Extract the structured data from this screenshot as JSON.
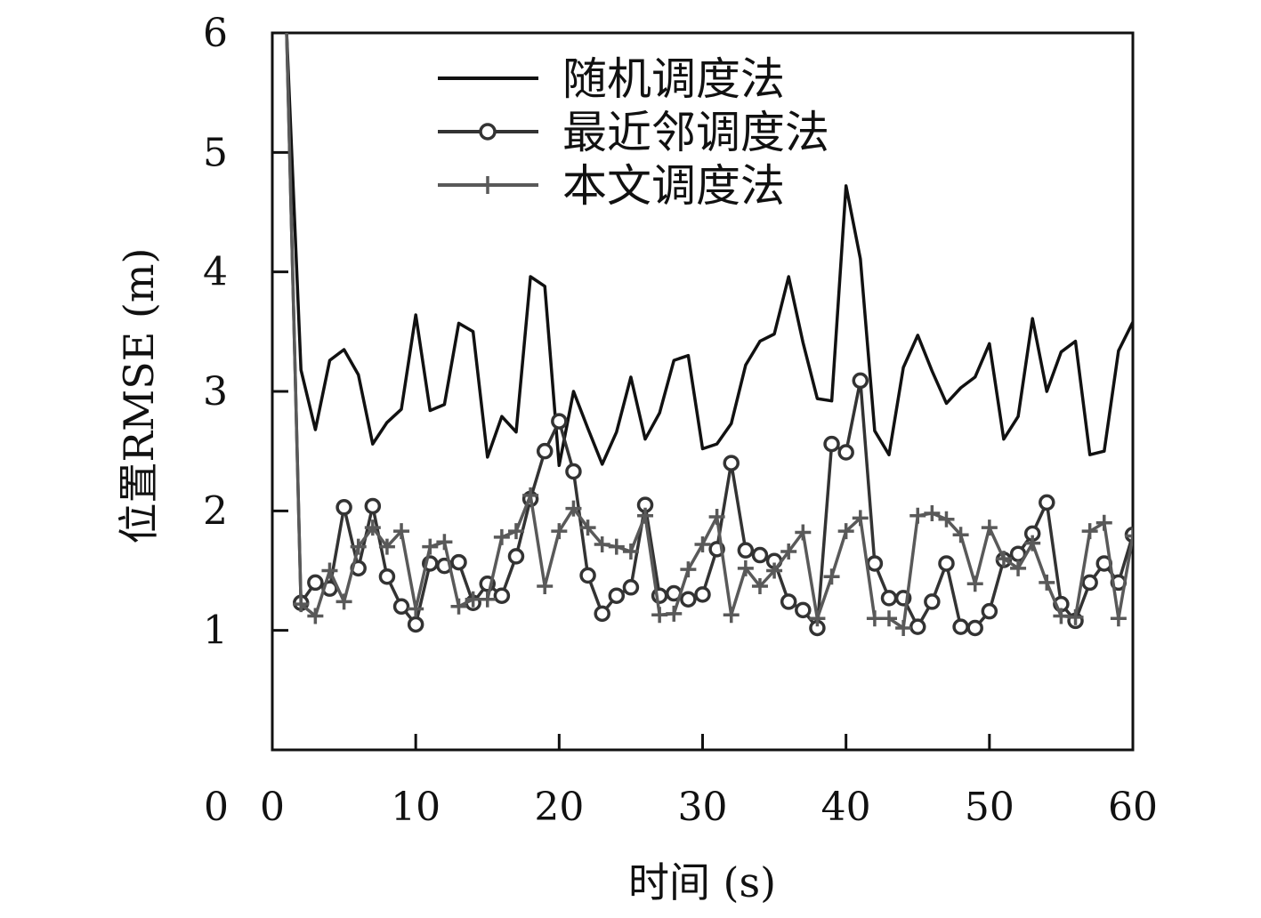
{
  "chart_data": {
    "type": "line",
    "title": "",
    "xlabel": "时间 (s)",
    "ylabel": "位置RMSE (m)",
    "xlim": [
      0,
      60
    ],
    "ylim": [
      0,
      6
    ],
    "x_ticks": [
      0,
      10,
      20,
      30,
      40,
      50,
      60
    ],
    "y_ticks": [
      1,
      2,
      3,
      4,
      5,
      6
    ],
    "x_tick_labels": [
      "0",
      "10",
      "20",
      "30",
      "40",
      "50",
      "60"
    ],
    "y_tick_labels": [
      "1",
      "2",
      "3",
      "4",
      "5",
      "6"
    ],
    "grid": false,
    "legend_position": "top-center",
    "x": [
      1,
      2,
      3,
      4,
      5,
      6,
      7,
      8,
      9,
      10,
      11,
      12,
      13,
      14,
      15,
      16,
      17,
      18,
      19,
      20,
      21,
      22,
      23,
      24,
      25,
      26,
      27,
      28,
      29,
      30,
      31,
      32,
      33,
      34,
      35,
      36,
      37,
      38,
      39,
      40,
      41,
      42,
      43,
      44,
      45,
      46,
      47,
      48,
      49,
      50,
      51,
      52,
      53,
      54,
      55,
      56,
      57,
      58,
      59,
      60
    ],
    "series": [
      {
        "name": "随机调度法",
        "color": "#111111",
        "marker": "none",
        "values": [
          6.0,
          3.18,
          2.68,
          3.26,
          3.35,
          3.14,
          2.56,
          2.74,
          2.85,
          3.64,
          2.84,
          2.89,
          3.57,
          3.5,
          2.45,
          2.79,
          2.66,
          3.96,
          3.88,
          2.38,
          3.0,
          2.69,
          2.39,
          2.66,
          3.12,
          2.6,
          2.82,
          3.26,
          3.3,
          2.52,
          2.56,
          2.73,
          3.22,
          3.42,
          3.48,
          3.96,
          3.41,
          2.94,
          2.92,
          4.72,
          4.11,
          2.67,
          2.47,
          3.2,
          3.47,
          3.17,
          2.9,
          3.03,
          3.12,
          3.4,
          2.6,
          2.79,
          3.61,
          3.0,
          3.33,
          3.42,
          2.47,
          2.5,
          3.34,
          3.58
        ]
      },
      {
        "name": "最近邻调度法",
        "color": "#333333",
        "marker": "circle",
        "values": [
          6.0,
          1.23,
          1.4,
          1.35,
          2.03,
          1.52,
          2.04,
          1.45,
          1.2,
          1.05,
          1.56,
          1.54,
          1.57,
          1.23,
          1.39,
          1.29,
          1.62,
          2.1,
          2.5,
          2.75,
          2.33,
          1.46,
          1.14,
          1.29,
          1.36,
          2.05,
          1.29,
          1.31,
          1.26,
          1.3,
          1.68,
          2.4,
          1.67,
          1.63,
          1.58,
          1.24,
          1.17,
          1.02,
          2.56,
          2.49,
          3.09,
          1.56,
          1.27,
          1.27,
          1.03,
          1.24,
          1.56,
          1.03,
          1.02,
          1.16,
          1.59,
          1.64,
          1.81,
          2.07,
          1.22,
          1.08,
          1.4,
          1.56,
          1.4,
          1.8
        ]
      },
      {
        "name": "本文调度法",
        "color": "#595959",
        "marker": "plus",
        "values": [
          6.0,
          1.22,
          1.12,
          1.5,
          1.24,
          1.7,
          1.86,
          1.7,
          1.83,
          1.18,
          1.7,
          1.74,
          1.2,
          1.26,
          1.26,
          1.78,
          1.83,
          2.13,
          1.37,
          1.83,
          2.02,
          1.86,
          1.72,
          1.7,
          1.66,
          1.96,
          1.13,
          1.14,
          1.51,
          1.72,
          1.95,
          1.13,
          1.52,
          1.37,
          1.5,
          1.66,
          1.82,
          1.1,
          1.45,
          1.83,
          1.94,
          1.1,
          1.1,
          1.02,
          1.96,
          1.98,
          1.93,
          1.8,
          1.39,
          1.86,
          1.6,
          1.52,
          1.73,
          1.4,
          1.12,
          1.11,
          1.83,
          1.9,
          1.1,
          1.79
        ]
      }
    ]
  }
}
